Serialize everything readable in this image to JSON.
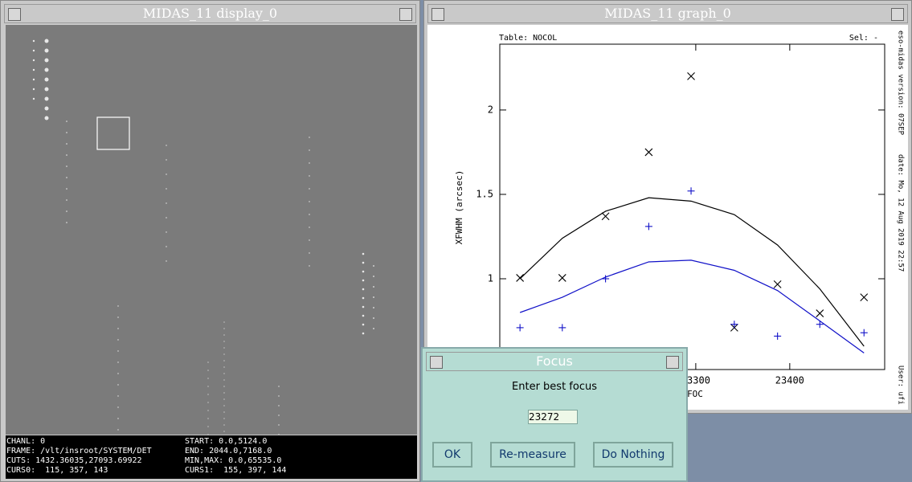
{
  "display_window": {
    "title": "MIDAS_11 display_0",
    "info": {
      "chanl": "CHANL: 0",
      "frame": "FRAME: /vlt/insroot/SYSTEM/DET",
      "cuts": "CUTS: 1432.36035,27093.69922",
      "curs0": "CURS0:  115, 357, 143",
      "start": "START: 0.0,5124.0",
      "end": "END: 2044.0,7168.0",
      "minmax": "MIN,MAX: 0.0,65535.0",
      "curs1": "CURS1:  155, 397, 144"
    }
  },
  "graph_window": {
    "title": "MIDAS_11 graph_0",
    "table_label": "Table: NOCOL",
    "sel_label": "Sel: -",
    "version_label": "eso-midas version: 07SEP",
    "date_label": "date: Mo, 12 Aug 2019 22:57",
    "user_label": "User: ufi",
    "chart": {
      "type": "scatter",
      "y_label": "XFWHM (arcsec)",
      "x_label": "FOC",
      "xlim": [
        23091.5,
        23501
      ],
      "ylim": [
        0.462,
        2.39
      ],
      "xticks": [
        23300,
        23400
      ],
      "yticks": [
        1,
        1.5,
        2
      ],
      "x": [
        23113,
        23158,
        23204,
        23250,
        23295,
        23341,
        23387,
        23432,
        23479
      ],
      "series": [
        {
          "color": "#000000",
          "marker": "x",
          "values": [
            1.005,
            1.005,
            1.37,
            1.75,
            2.2,
            0.71,
            0.967,
            0.795,
            0.89
          ]
        },
        {
          "color": "#1010c8",
          "marker": "+",
          "values": [
            0.71,
            0.71,
            1.0,
            1.31,
            1.52,
            0.73,
            0.66,
            0.73,
            0.68
          ]
        }
      ],
      "fits": [
        {
          "color": "#000000",
          "values": [
            1.0,
            1.24,
            1.4,
            1.48,
            1.46,
            1.38,
            1.2,
            0.94,
            0.6
          ]
        },
        {
          "color": "#1010c8",
          "values": [
            0.8,
            0.89,
            1.01,
            1.1,
            1.11,
            1.05,
            0.93,
            0.75,
            0.56
          ]
        }
      ]
    }
  },
  "dialog": {
    "title": "Focus",
    "prompt": "Enter best focus",
    "input": "23272",
    "buttons": [
      "OK",
      "Re-measure",
      "Do Nothing"
    ]
  }
}
